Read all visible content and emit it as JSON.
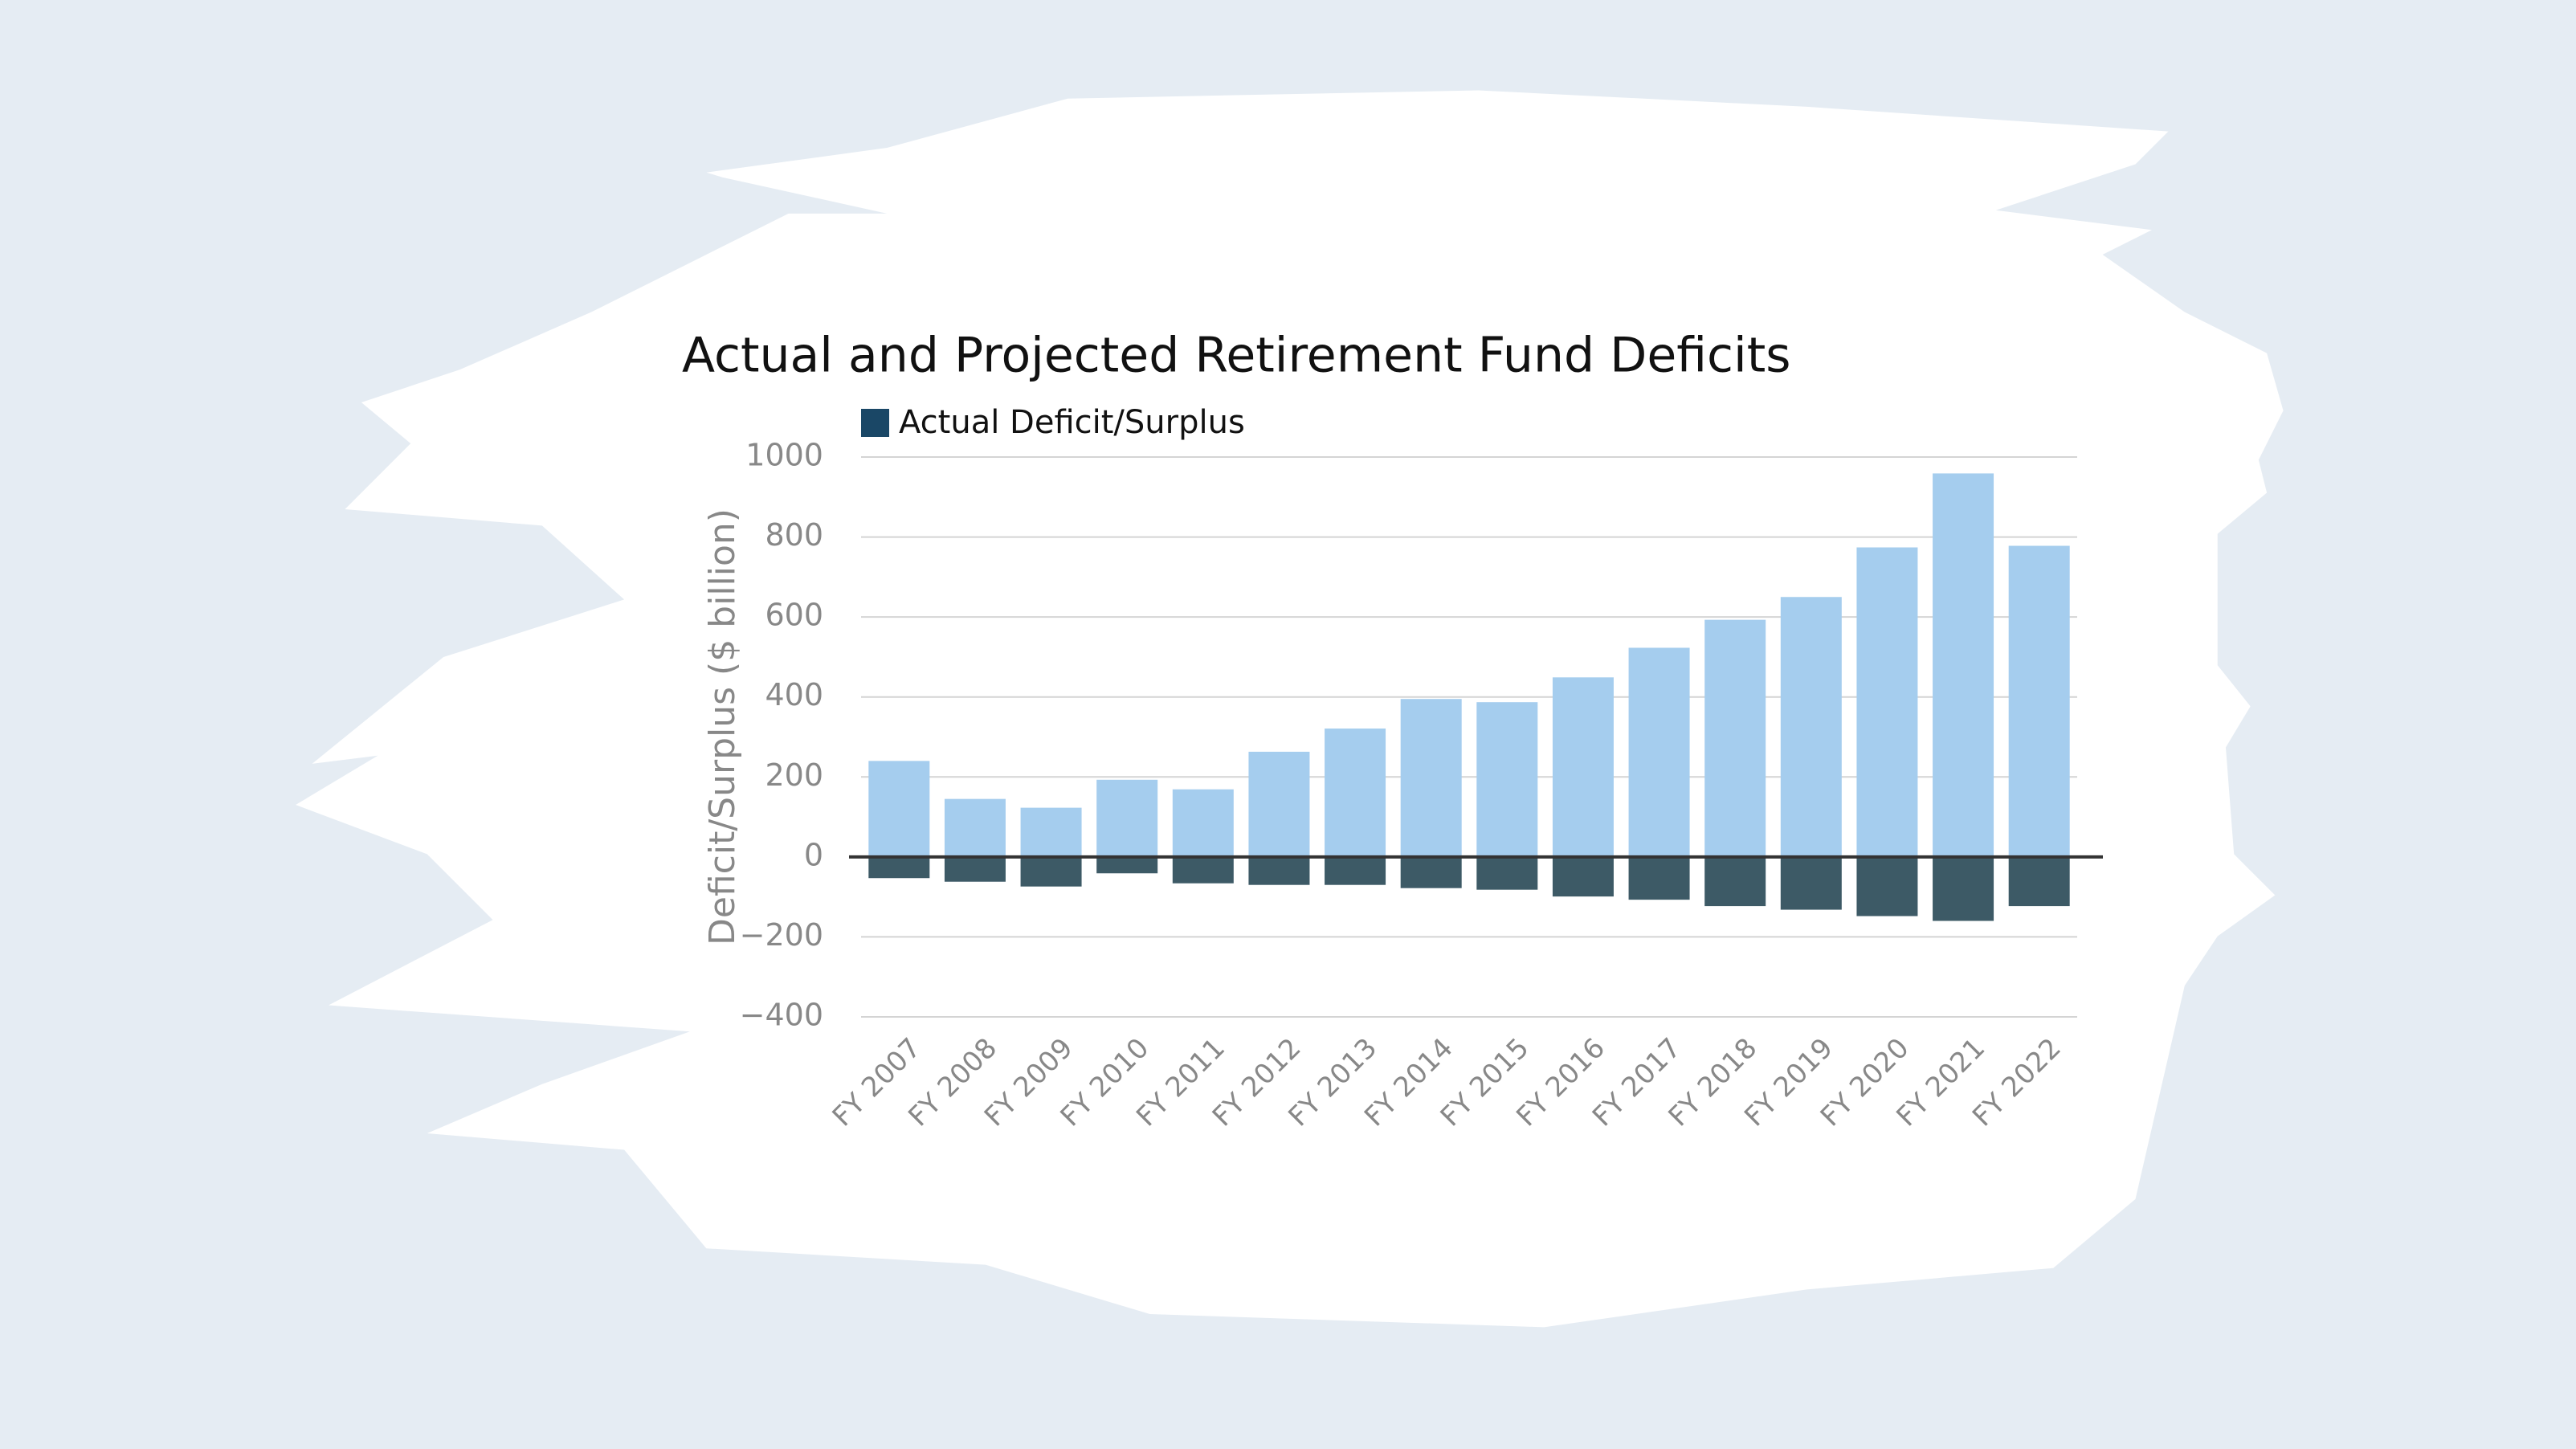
{
  "chart_data": {
    "type": "bar",
    "title": "Actual and Projected Retirement Fund Deficits",
    "y_label": "Deficit/Surplus ($ billion)",
    "categories": [
      "FY 2007",
      "FY 2008",
      "FY 2009",
      "FY 2010",
      "FY 2011",
      "FY 2012",
      "FY 2013",
      "FY 2014",
      "FY 2015",
      "FY 2016",
      "FY 2017",
      "FY 2018",
      "FY 2019",
      "FY 2020",
      "FY 2021",
      "FY 2022"
    ],
    "series": [
      {
        "color": "#a5cdee",
        "values": [
          240,
          145,
          123,
          193,
          169,
          263,
          321,
          395,
          387,
          449,
          523,
          593,
          650,
          774,
          959,
          778
        ]
      },
      {
        "name": "Actual Deficit/Surplus",
        "color": "#3d5a66",
        "values": [
          -53,
          -62,
          -74,
          -41,
          -66,
          -70,
          -70,
          -78,
          -82,
          -99,
          -107,
          -123,
          -132,
          -148,
          -160,
          -123
        ]
      }
    ],
    "ylim": [
      -400,
      1000
    ],
    "yticks": [
      {
        "value": -400,
        "label": "−400"
      },
      {
        "value": -200,
        "label": "−200"
      },
      0,
      200,
      400,
      600,
      800,
      1000
    ],
    "grid": true
  }
}
